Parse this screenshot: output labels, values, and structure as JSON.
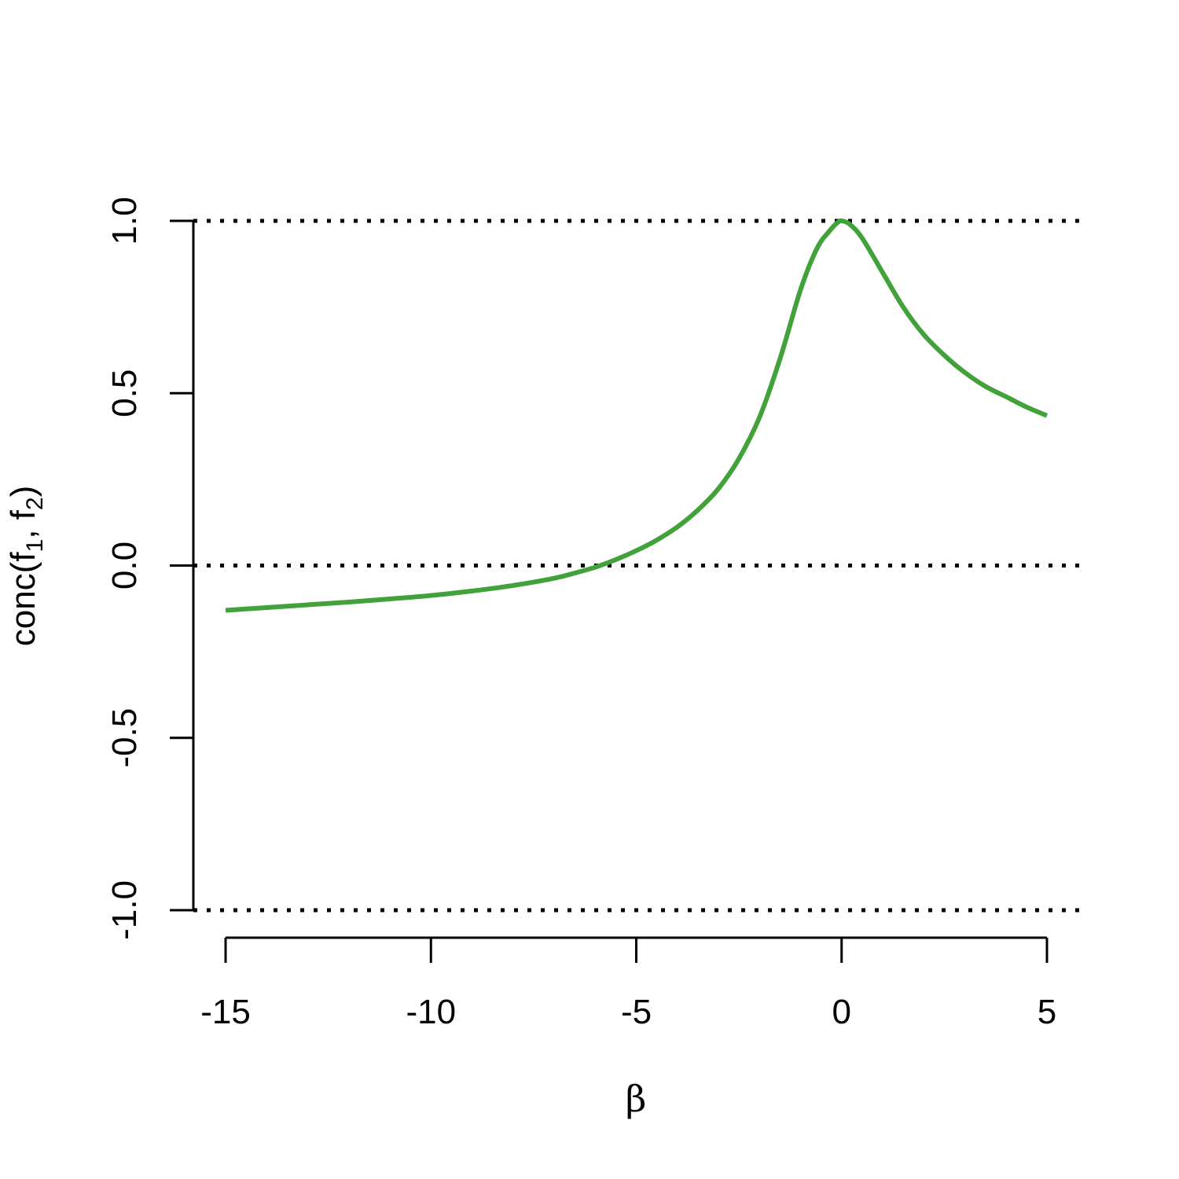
{
  "chart_data": {
    "type": "line",
    "xlabel": "β",
    "ylabel": {
      "prefix": "conc(f",
      "sub1": "1",
      "middle": ", f",
      "sub2": "2",
      "suffix": ")"
    },
    "xlim": [
      -15,
      5
    ],
    "ylim": [
      -1,
      1
    ],
    "x_ticks": [
      -15,
      -10,
      -5,
      0,
      5
    ],
    "x_tick_labels": [
      "-15",
      "-10",
      "-5",
      "0",
      "5"
    ],
    "y_ticks": [
      -1,
      -0.5,
      0,
      0.5,
      1
    ],
    "y_tick_labels": [
      "-1.0",
      "-0.5",
      "0.0",
      "0.5",
      "1.0"
    ],
    "grid": false,
    "reference_lines": [
      {
        "y": 1,
        "style": "dotted",
        "color": "#000000"
      },
      {
        "y": 0,
        "style": "dotted",
        "color": "#000000"
      },
      {
        "y": -1,
        "style": "dotted",
        "color": "#000000"
      }
    ],
    "series": [
      {
        "color": "#41a23a",
        "x": [
          -15,
          -14,
          -13,
          -12,
          -11,
          -10,
          -9,
          -8,
          -7,
          -6.5,
          -6,
          -5.5,
          -5,
          -4.5,
          -4,
          -3.5,
          -3,
          -2.5,
          -2,
          -1.5,
          -1,
          -0.6,
          -0.3,
          -0.1,
          0,
          0.2,
          0.5,
          1,
          1.5,
          2,
          2.5,
          3,
          3.5,
          4,
          4.5,
          5
        ],
        "y": [
          -0.13,
          -0.122,
          -0.114,
          -0.106,
          -0.097,
          -0.087,
          -0.074,
          -0.058,
          -0.037,
          -0.022,
          -0.005,
          0.017,
          0.043,
          0.074,
          0.112,
          0.161,
          0.223,
          0.31,
          0.43,
          0.6,
          0.8,
          0.92,
          0.97,
          0.995,
          1.0,
          0.99,
          0.95,
          0.85,
          0.75,
          0.67,
          0.61,
          0.56,
          0.52,
          0.49,
          0.46,
          0.435
        ]
      }
    ]
  }
}
